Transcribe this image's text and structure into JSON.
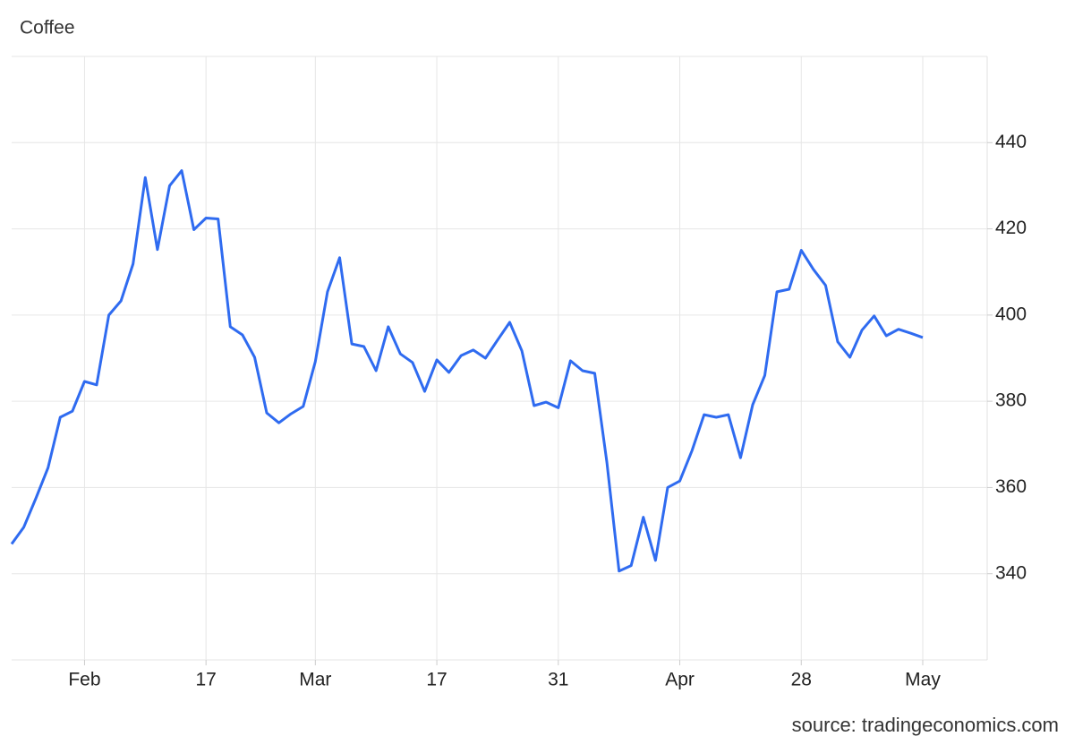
{
  "chart_data": {
    "type": "line",
    "title": "Coffee",
    "source": "source: tradingeconomics.com",
    "categories": [
      null,
      null,
      null,
      null,
      null,
      null,
      "Feb",
      null,
      null,
      null,
      null,
      null,
      null,
      null,
      null,
      null,
      "17",
      null,
      null,
      null,
      null,
      null,
      null,
      null,
      null,
      "Mar",
      null,
      null,
      null,
      null,
      null,
      null,
      null,
      null,
      null,
      "17",
      null,
      null,
      null,
      null,
      null,
      null,
      null,
      null,
      null,
      "31",
      null,
      null,
      null,
      null,
      null,
      null,
      null,
      null,
      null,
      "Apr",
      null,
      null,
      null,
      null,
      null,
      null,
      null,
      null,
      null,
      "28",
      null,
      null,
      null,
      null,
      null,
      null,
      null,
      null,
      null,
      "May"
    ],
    "series": [
      {
        "name": "Coffee",
        "color": "#2f6bf0",
        "values": [
          346.9,
          350.8,
          357.5,
          364.6,
          376.3,
          377.7,
          384.6,
          383.8,
          400,
          403.3,
          411.9,
          431.9,
          415.2,
          430,
          433.5,
          419.8,
          422.5,
          422.3,
          397.3,
          395.4,
          390.2,
          377.3,
          375,
          377.1,
          378.8,
          389.2,
          405.4,
          413.3,
          393.3,
          392.7,
          387.1,
          397.3,
          391,
          389,
          382.3,
          389.6,
          386.7,
          390.6,
          391.9,
          390,
          394.2,
          398.3,
          391.7,
          379,
          379.8,
          378.5,
          389.4,
          387.1,
          386.5,
          365.8,
          340.6,
          341.9,
          353.1,
          343.1,
          360,
          361.5,
          368.5,
          376.9,
          376.3,
          376.9,
          366.9,
          379.2,
          386,
          405.4,
          406,
          415,
          410.6,
          406.9,
          393.8,
          390.2,
          396.5,
          399.8,
          395.2,
          396.7,
          395.8,
          394.8
        ]
      }
    ],
    "ylim": [
      320,
      460
    ],
    "yticks": [
      340,
      360,
      380,
      400,
      420,
      440
    ],
    "grid": true
  }
}
